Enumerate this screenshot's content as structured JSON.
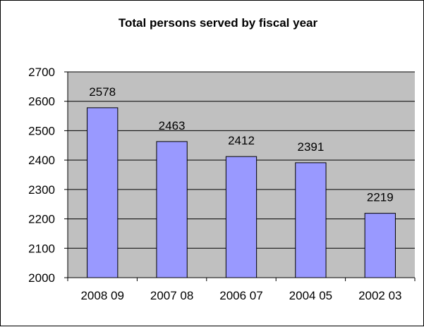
{
  "chart_data": {
    "type": "bar",
    "title": "Total persons served by fiscal year",
    "categories": [
      "2008 09",
      "2007 08",
      "2006 07",
      "2004 05",
      "2002 03"
    ],
    "values": [
      2578,
      2463,
      2412,
      2391,
      2219
    ],
    "data_labels": [
      "2578",
      "2463",
      "2412",
      "2391",
      "2219"
    ],
    "xlabel": "",
    "ylabel": "",
    "ylim": [
      2000,
      2700
    ],
    "yticks": [
      2000,
      2100,
      2200,
      2300,
      2400,
      2500,
      2600,
      2700
    ],
    "grid": true,
    "legend": "none",
    "colors": {
      "bar_fill": "#9999ff",
      "plot_background": "#c0c0c0",
      "gridline": "#000000",
      "bar_outline": "#000000"
    }
  }
}
